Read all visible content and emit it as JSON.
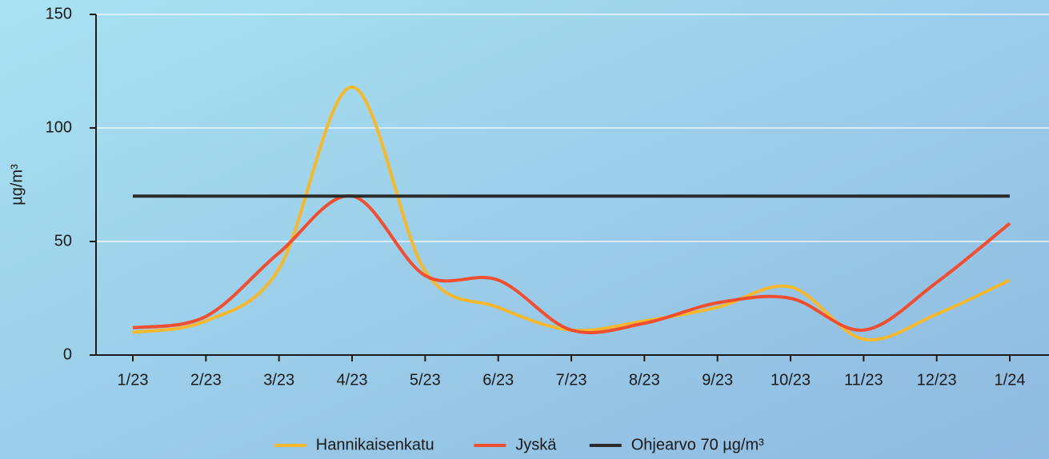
{
  "chart_data": {
    "type": "line",
    "ylabel": "µg/m³",
    "categories": [
      "1/23",
      "2/23",
      "3/23",
      "4/23",
      "5/23",
      "6/23",
      "7/23",
      "8/23",
      "9/23",
      "10/23",
      "11/23",
      "12/23",
      "1/24"
    ],
    "series": [
      {
        "name": "Hannikaisenkatu",
        "color": "#f5b82e",
        "values": [
          10,
          15,
          38,
          118,
          37,
          21,
          11,
          15,
          21,
          30,
          7,
          18,
          33
        ]
      },
      {
        "name": "Jyskä",
        "color": "#f04e30",
        "values": [
          12,
          17,
          45,
          70,
          35,
          33,
          11,
          14,
          23,
          25,
          11,
          32,
          58
        ]
      },
      {
        "name": "Ohjearvo 70 µg/m³",
        "color": "#2b2b2b",
        "values": [
          70,
          70,
          70,
          70,
          70,
          70,
          70,
          70,
          70,
          70,
          70,
          70,
          70
        ]
      }
    ],
    "ylim": [
      0,
      150
    ],
    "yticks": [
      0,
      50,
      100,
      150
    ],
    "grid": true,
    "legend": "bottom"
  }
}
